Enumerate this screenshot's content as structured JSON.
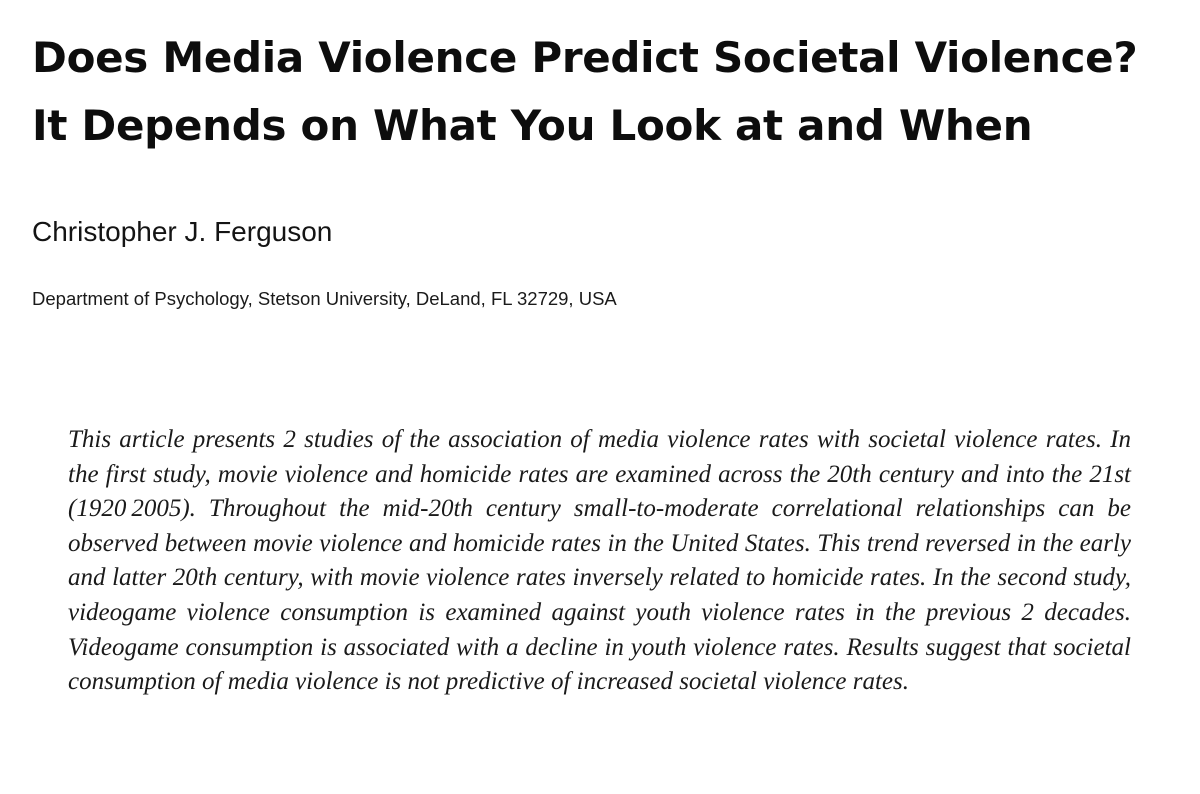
{
  "article": {
    "title": "Does Media Violence Predict Societal Violence? It Depends on What You Look at and When",
    "author": "Christopher J. Ferguson",
    "affiliation": "Department of Psychology, Stetson University, DeLand, FL 32729, USA",
    "abstract": "This article presents 2 studies of the association of media violence rates with societal violence rates. In the first study, movie violence and homicide rates are examined across the 20th cen­tury and into the 21st (1920 2005). Throughout the mid-20th century small-to-moderate correlational relationships can be observed between movie violence and homicide rates in the United States. This trend reversed in the early and latter 20th century, with movie violence rates inversely related to homicide rates. In the second study, videogame violence consumption is examined against youth violence rates in the previous 2 decades. Videogame consumption is associated with a decline in youth violence rates. Results suggest that soci­etal consumption of media violence is not predictive of increased societal violence rates."
  }
}
